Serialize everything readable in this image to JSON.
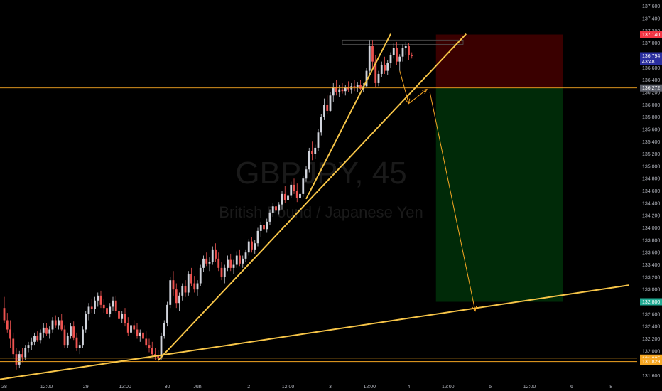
{
  "watermark": {
    "symbol": "GBPJPY, 45",
    "description": "British Pound / Japanese Yen"
  },
  "colors": {
    "background": "#000000",
    "bull": "#d1d4dc",
    "bear": "#ef5350",
    "trendline": "#f7c548",
    "hline": "#f5a623",
    "stop_zone": "#3a0000",
    "target_zone": "#002a08",
    "badge_red": "#f23645",
    "badge_blue": "#2a2e9e",
    "badge_green": "#22ab94",
    "badge_orange": "#f5a623",
    "badge_grey": "#5d606b"
  },
  "chart_data": {
    "type": "candlestick",
    "ylim": [
      131.49,
      137.7
    ],
    "y_ticks": [
      "137.600",
      "137.400",
      "137.200",
      "137.000",
      "136.800",
      "136.600",
      "136.400",
      "136.200",
      "136.000",
      "135.800",
      "135.600",
      "135.400",
      "135.200",
      "135.000",
      "134.800",
      "134.600",
      "134.400",
      "134.200",
      "134.000",
      "133.800",
      "133.600",
      "133.400",
      "133.200",
      "133.000",
      "132.800",
      "132.600",
      "132.400",
      "132.200",
      "132.000",
      "131.800",
      "131.600"
    ],
    "x_ticks": [
      {
        "label": "28",
        "bar": 0
      },
      {
        "label": "12:00",
        "bar": 14
      },
      {
        "label": "29",
        "bar": 27
      },
      {
        "label": "12:00",
        "bar": 40
      },
      {
        "label": "30",
        "bar": 54
      },
      {
        "label": "Jun",
        "bar": 64
      },
      {
        "label": "2",
        "bar": 81
      },
      {
        "label": "12:00",
        "bar": 94
      },
      {
        "label": "3",
        "bar": 108
      },
      {
        "label": "12:00",
        "bar": 121
      },
      {
        "label": "4",
        "bar": 134
      },
      {
        "label": "12:00",
        "bar": 147
      },
      {
        "label": "5",
        "bar": 161
      },
      {
        "label": "12:00",
        "bar": 174
      },
      {
        "label": "6",
        "bar": 188
      },
      {
        "label": "8",
        "bar": 201
      }
    ],
    "price_badges": [
      {
        "label": "137.140",
        "value": 137.14,
        "color": "badge_red"
      },
      {
        "label": "136.794",
        "value": 136.794,
        "color": "badge_blue"
      },
      {
        "label": "43:48",
        "value": 136.7,
        "color": "badge_blue"
      },
      {
        "label": "136.272",
        "value": 136.272,
        "color": "badge_grey"
      },
      {
        "label": "132.800",
        "value": 132.8,
        "color": "badge_green"
      },
      {
        "label": "131.885",
        "value": 131.885,
        "color": "badge_orange"
      },
      {
        "label": "131.829",
        "value": 131.829,
        "color": "badge_orange"
      }
    ],
    "horizontal_lines": [
      136.272,
      131.885,
      131.829
    ],
    "position": {
      "entry": 136.272,
      "stop": 137.14,
      "target": 132.8,
      "bar_start": 143,
      "bar_end": 185
    },
    "trendlines": [
      {
        "bar1": -7,
        "p1": 131.5,
        "bar2": 207,
        "p2": 133.07
      },
      {
        "bar1": 51,
        "p1": 131.85,
        "bar2": 153,
        "p2": 137.15
      },
      {
        "bar1": 100,
        "p1": 134.47,
        "bar2": 128,
        "p2": 137.15
      }
    ],
    "arrows": [
      [
        {
          "bar": 131,
          "p": 136.55
        },
        {
          "bar": 134,
          "p": 136.02
        }
      ],
      [
        {
          "bar": 134,
          "p": 136.02
        },
        {
          "bar": 140,
          "p": 136.25
        }
      ],
      [
        {
          "bar": 141,
          "p": 136.2
        },
        {
          "bar": 156,
          "p": 132.65
        }
      ]
    ],
    "resistance_box": {
      "bar_start": 112,
      "bar_end": 152,
      "top": 137.05,
      "bottom": 136.98
    },
    "candles": [
      [
        132.7,
        132.88,
        132.45,
        132.5
      ],
      [
        132.5,
        132.62,
        132.3,
        132.35
      ],
      [
        132.35,
        132.5,
        132.05,
        132.2
      ],
      [
        132.2,
        132.3,
        131.88,
        131.95
      ],
      [
        131.95,
        132.05,
        131.7,
        131.78
      ],
      [
        131.78,
        132.0,
        131.72,
        131.95
      ],
      [
        131.95,
        132.05,
        131.82,
        131.9
      ],
      [
        131.9,
        132.1,
        131.85,
        132.05
      ],
      [
        132.05,
        132.15,
        131.98,
        132.1
      ],
      [
        132.1,
        132.22,
        132.02,
        132.15
      ],
      [
        132.15,
        132.3,
        132.1,
        132.25
      ],
      [
        132.25,
        132.32,
        132.15,
        132.18
      ],
      [
        132.18,
        132.35,
        132.12,
        132.3
      ],
      [
        132.3,
        132.45,
        132.22,
        132.38
      ],
      [
        132.38,
        132.45,
        132.25,
        132.28
      ],
      [
        132.28,
        132.4,
        132.2,
        132.35
      ],
      [
        132.35,
        132.55,
        132.3,
        132.5
      ],
      [
        132.5,
        132.58,
        132.38,
        132.42
      ],
      [
        132.42,
        132.55,
        132.35,
        132.5
      ],
      [
        132.5,
        132.6,
        132.32,
        132.35
      ],
      [
        132.35,
        132.42,
        132.05,
        132.1
      ],
      [
        132.1,
        132.3,
        132.05,
        132.25
      ],
      [
        132.25,
        132.45,
        132.2,
        132.4
      ],
      [
        132.4,
        132.48,
        132.18,
        132.22
      ],
      [
        132.22,
        132.3,
        132.0,
        132.05
      ],
      [
        132.05,
        132.15,
        131.95,
        132.1
      ],
      [
        132.1,
        132.4,
        132.05,
        132.35
      ],
      [
        132.35,
        132.65,
        132.3,
        132.6
      ],
      [
        132.6,
        132.78,
        132.5,
        132.72
      ],
      [
        132.72,
        132.85,
        132.62,
        132.68
      ],
      [
        132.68,
        132.88,
        132.6,
        132.82
      ],
      [
        132.82,
        132.95,
        132.72,
        132.9
      ],
      [
        132.9,
        132.98,
        132.7,
        132.75
      ],
      [
        132.75,
        132.85,
        132.62,
        132.7
      ],
      [
        132.7,
        132.8,
        132.55,
        132.6
      ],
      [
        132.6,
        132.78,
        132.55,
        132.72
      ],
      [
        132.72,
        132.88,
        132.65,
        132.82
      ],
      [
        132.82,
        132.9,
        132.62,
        132.65
      ],
      [
        132.65,
        132.72,
        132.48,
        132.52
      ],
      [
        132.52,
        132.65,
        132.45,
        132.6
      ],
      [
        132.6,
        132.7,
        132.4,
        132.45
      ],
      [
        132.45,
        132.55,
        132.25,
        132.3
      ],
      [
        132.3,
        132.48,
        132.25,
        132.42
      ],
      [
        132.42,
        132.5,
        132.28,
        132.35
      ],
      [
        132.35,
        132.45,
        132.2,
        132.25
      ],
      [
        132.25,
        132.35,
        132.15,
        132.3
      ],
      [
        132.3,
        132.38,
        132.15,
        132.2
      ],
      [
        132.2,
        132.32,
        132.05,
        132.1
      ],
      [
        132.1,
        132.2,
        131.98,
        132.05
      ],
      [
        132.05,
        132.15,
        131.9,
        131.95
      ],
      [
        131.95,
        132.05,
        131.85,
        131.92
      ],
      [
        131.92,
        132.02,
        131.83,
        131.88
      ],
      [
        131.88,
        132.3,
        131.85,
        132.25
      ],
      [
        132.25,
        132.5,
        132.2,
        132.45
      ],
      [
        132.45,
        132.8,
        132.4,
        132.75
      ],
      [
        132.75,
        133.2,
        132.7,
        133.15
      ],
      [
        133.15,
        133.3,
        132.9,
        133.0
      ],
      [
        133.0,
        133.1,
        132.7,
        132.78
      ],
      [
        132.78,
        132.95,
        132.65,
        132.9
      ],
      [
        132.9,
        133.1,
        132.82,
        133.05
      ],
      [
        133.05,
        133.15,
        132.88,
        132.95
      ],
      [
        132.95,
        133.3,
        132.9,
        133.25
      ],
      [
        133.25,
        133.35,
        133.05,
        133.1
      ],
      [
        133.1,
        133.22,
        132.95,
        133.0
      ],
      [
        133.0,
        133.15,
        132.9,
        133.1
      ],
      [
        133.1,
        133.4,
        133.05,
        133.35
      ],
      [
        133.35,
        133.55,
        133.28,
        133.5
      ],
      [
        133.5,
        133.6,
        133.38,
        133.42
      ],
      [
        133.42,
        133.52,
        133.3,
        133.45
      ],
      [
        133.45,
        133.7,
        133.4,
        133.65
      ],
      [
        133.65,
        133.75,
        133.45,
        133.5
      ],
      [
        133.5,
        133.6,
        133.3,
        133.35
      ],
      [
        133.35,
        133.45,
        133.15,
        133.2
      ],
      [
        133.2,
        133.4,
        133.1,
        133.35
      ],
      [
        133.35,
        133.55,
        133.3,
        133.48
      ],
      [
        133.48,
        133.58,
        133.3,
        133.35
      ],
      [
        133.35,
        133.48,
        133.25,
        133.4
      ],
      [
        133.4,
        133.62,
        133.35,
        133.55
      ],
      [
        133.55,
        133.65,
        133.38,
        133.42
      ],
      [
        133.42,
        133.55,
        133.35,
        133.5
      ],
      [
        133.5,
        133.65,
        133.45,
        133.6
      ],
      [
        133.6,
        133.82,
        133.55,
        133.78
      ],
      [
        133.78,
        133.85,
        133.6,
        133.65
      ],
      [
        133.65,
        133.8,
        133.58,
        133.75
      ],
      [
        133.75,
        134.0,
        133.7,
        133.95
      ],
      [
        133.95,
        134.1,
        133.85,
        134.05
      ],
      [
        134.05,
        134.15,
        133.9,
        133.98
      ],
      [
        133.98,
        134.15,
        133.92,
        134.1
      ],
      [
        134.1,
        134.3,
        134.05,
        134.25
      ],
      [
        134.25,
        134.4,
        134.18,
        134.35
      ],
      [
        134.35,
        134.45,
        134.2,
        134.28
      ],
      [
        134.28,
        134.42,
        134.22,
        134.38
      ],
      [
        134.38,
        134.6,
        134.3,
        134.55
      ],
      [
        134.55,
        134.68,
        134.4,
        134.45
      ],
      [
        134.45,
        134.58,
        134.38,
        134.52
      ],
      [
        134.52,
        134.75,
        134.48,
        134.7
      ],
      [
        134.7,
        134.8,
        134.55,
        134.6
      ],
      [
        134.6,
        134.72,
        134.42,
        134.48
      ],
      [
        134.48,
        134.6,
        134.4,
        134.55
      ],
      [
        134.55,
        134.85,
        134.5,
        134.8
      ],
      [
        134.8,
        135.0,
        134.75,
        134.95
      ],
      [
        134.95,
        135.3,
        134.9,
        135.25
      ],
      [
        135.25,
        135.4,
        135.1,
        135.2
      ],
      [
        135.2,
        135.35,
        135.12,
        135.3
      ],
      [
        135.3,
        135.6,
        135.25,
        135.55
      ],
      [
        135.55,
        135.85,
        135.5,
        135.8
      ],
      [
        135.8,
        136.1,
        135.75,
        136.0
      ],
      [
        136.0,
        136.15,
        135.85,
        135.9
      ],
      [
        135.9,
        136.2,
        135.88,
        136.15
      ],
      [
        136.15,
        136.35,
        136.05,
        136.28
      ],
      [
        136.28,
        136.4,
        136.15,
        136.2
      ],
      [
        136.2,
        136.32,
        136.12,
        136.25
      ],
      [
        136.25,
        136.35,
        136.18,
        136.22
      ],
      [
        136.22,
        136.32,
        136.15,
        136.28
      ],
      [
        136.28,
        136.38,
        136.2,
        136.25
      ],
      [
        136.25,
        136.35,
        136.18,
        136.3
      ],
      [
        136.3,
        136.4,
        136.22,
        136.28
      ],
      [
        136.28,
        136.36,
        136.2,
        136.32
      ],
      [
        136.32,
        136.4,
        136.24,
        136.26
      ],
      [
        136.26,
        136.35,
        136.2,
        136.3
      ],
      [
        136.3,
        136.6,
        136.28,
        136.55
      ],
      [
        136.55,
        137.05,
        136.5,
        136.95
      ],
      [
        136.95,
        137.05,
        136.6,
        136.7
      ],
      [
        136.7,
        136.8,
        136.28,
        136.35
      ],
      [
        136.35,
        136.55,
        136.3,
        136.5
      ],
      [
        136.5,
        136.7,
        136.45,
        136.65
      ],
      [
        136.65,
        136.78,
        136.5,
        136.55
      ],
      [
        136.55,
        136.72,
        136.48,
        136.68
      ],
      [
        136.68,
        136.85,
        136.6,
        136.8
      ],
      [
        136.8,
        137.0,
        136.75,
        136.92
      ],
      [
        136.92,
        137.02,
        136.65,
        136.7
      ],
      [
        136.7,
        136.82,
        136.55,
        136.78
      ],
      [
        136.78,
        136.98,
        136.7,
        136.92
      ],
      [
        136.92,
        137.02,
        136.8,
        136.95
      ],
      [
        136.95,
        137.0,
        136.72,
        136.8
      ],
      [
        136.8,
        136.85,
        136.75,
        136.79
      ]
    ]
  }
}
